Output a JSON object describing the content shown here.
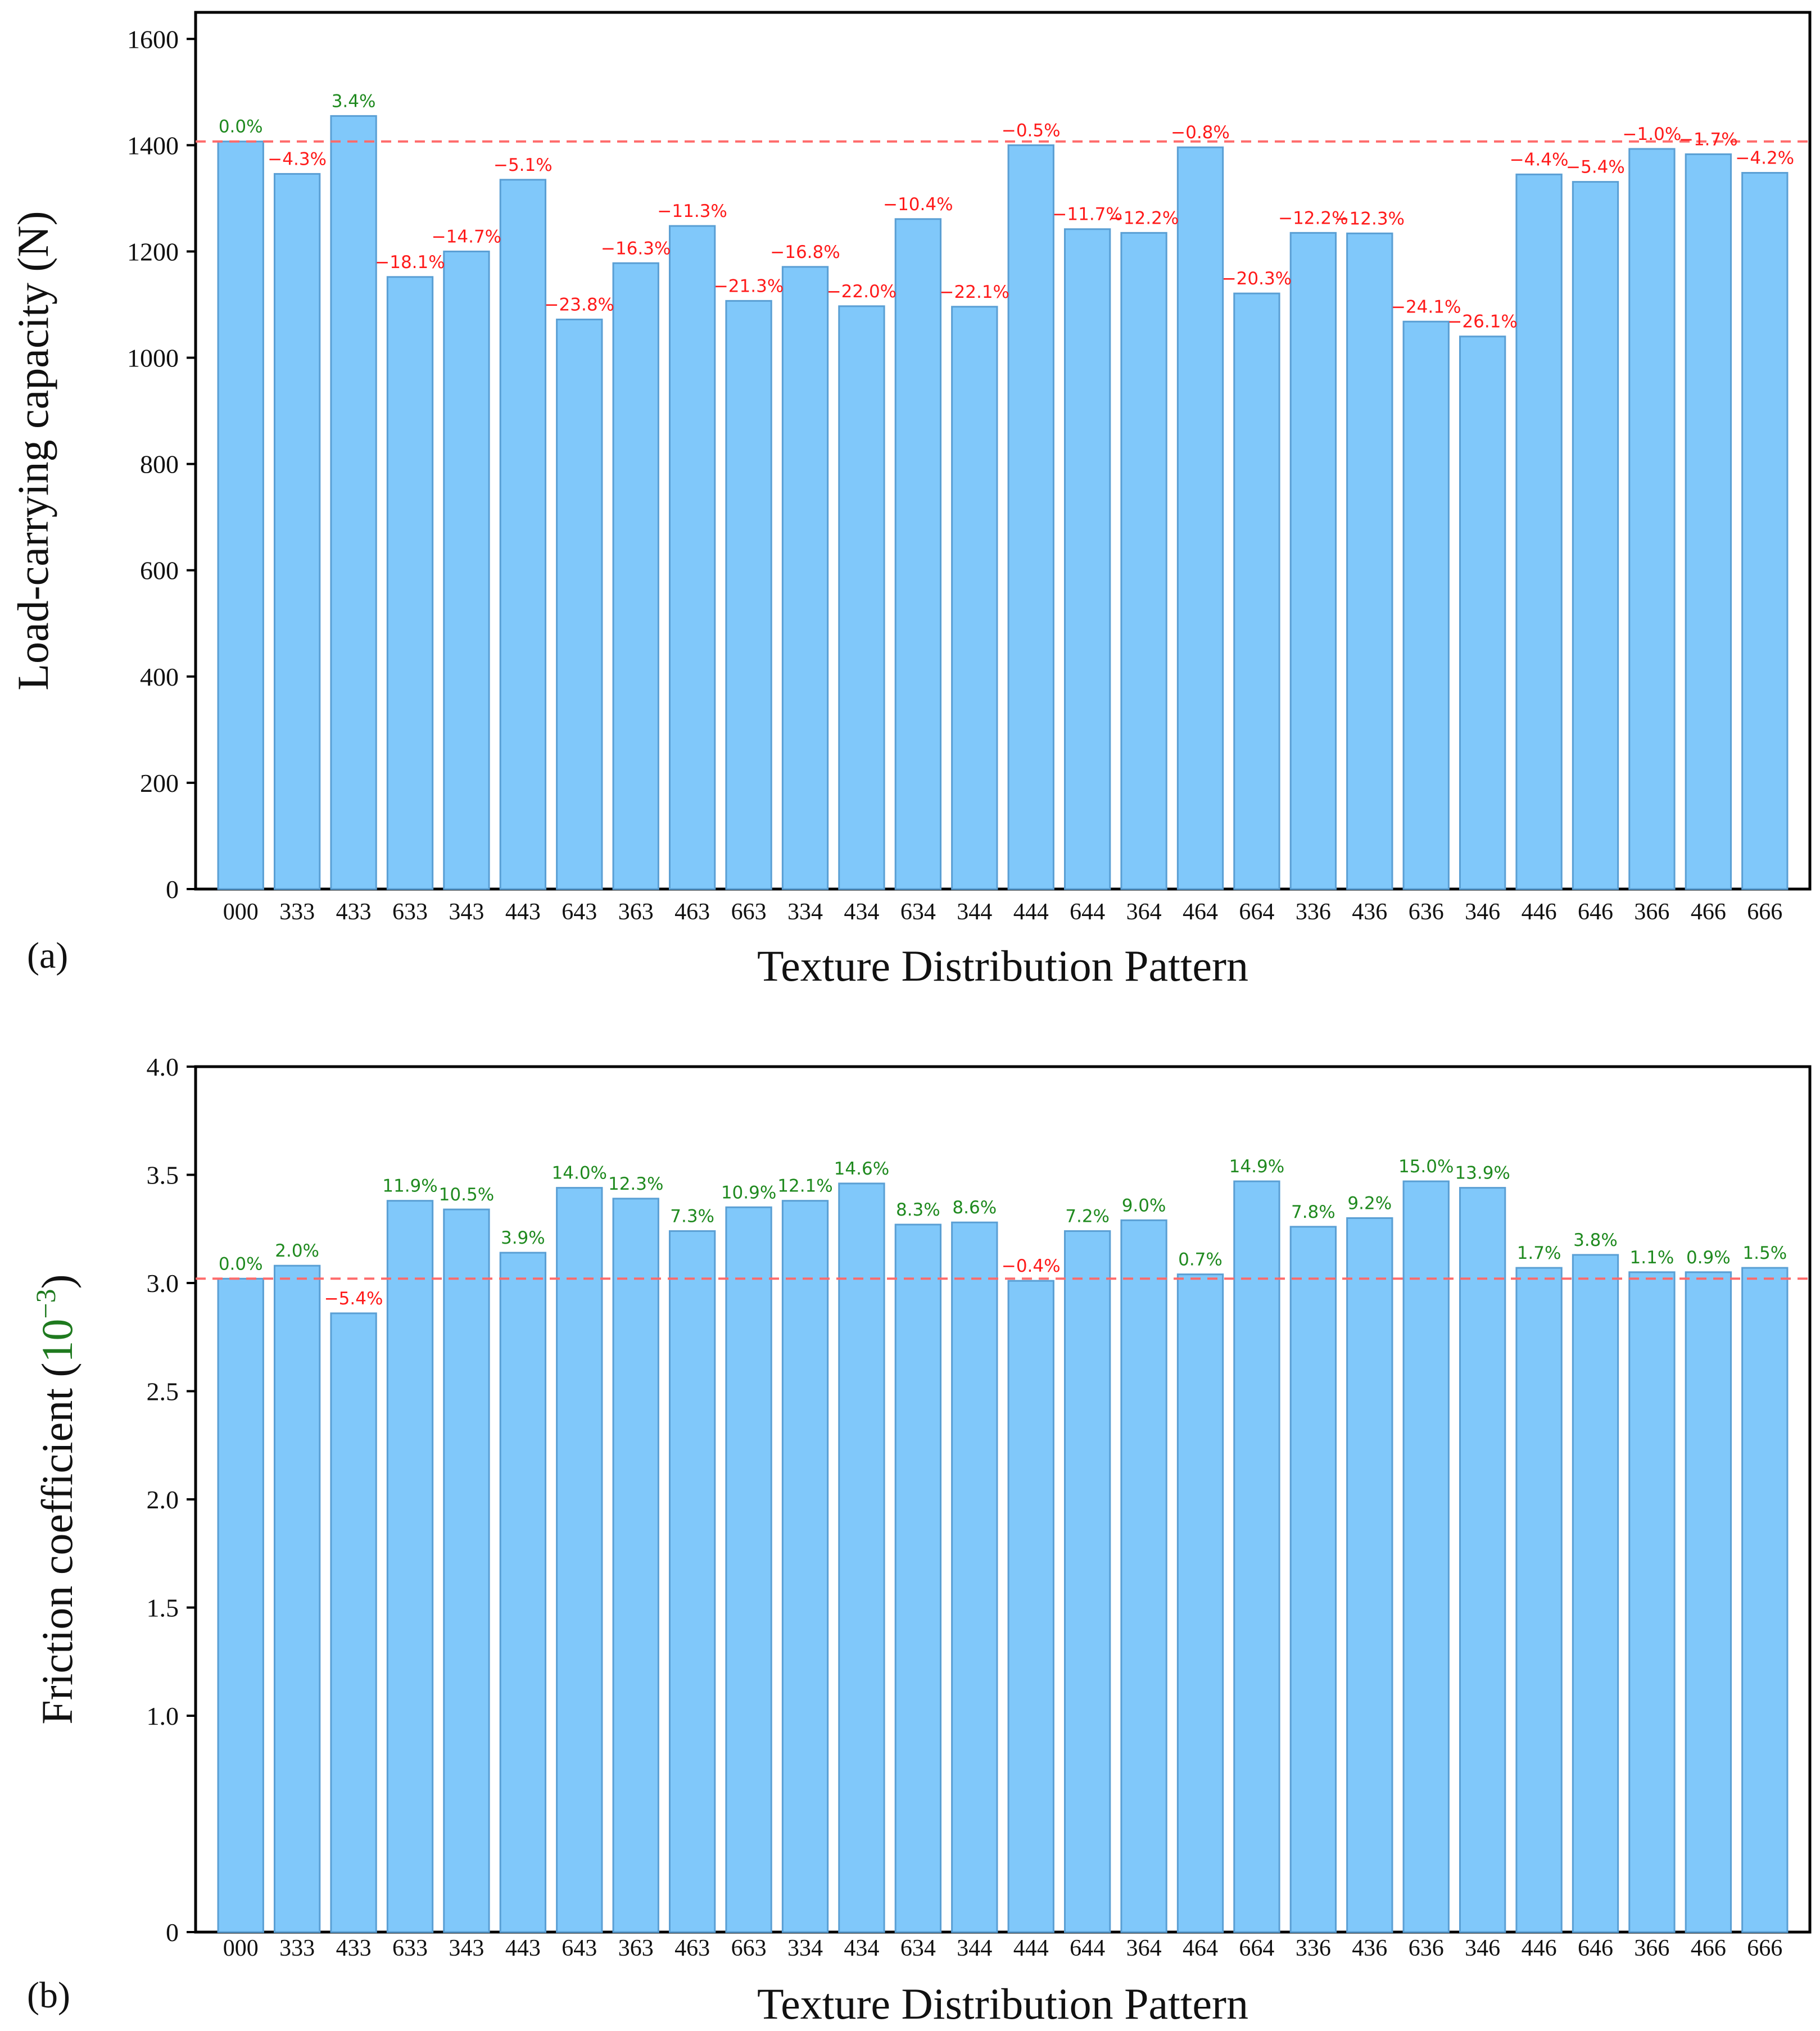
{
  "colors": {
    "bar_fill": "#80c8fa",
    "baseline": "#ff6b6b",
    "positive": "#1f8a1f",
    "negative": "#ff1a1a",
    "unit_accent": "#1f7a1f",
    "axis": "#000000"
  },
  "chart_data": [
    {
      "type": "bar",
      "panel_label": "(a)",
      "xlabel": "Texture Distribution Pattern",
      "ylabel": "Load-carrying capacity (N)",
      "ylim": [
        0,
        1650
      ],
      "yticks": [
        0,
        200,
        400,
        600,
        800,
        1000,
        1200,
        1400,
        1600
      ],
      "ytick_labels": [
        "0",
        "200",
        "400",
        "600",
        "800",
        "1000",
        "1200",
        "1400",
        "1600"
      ],
      "baseline_value": 1407,
      "baseline_style": "dashed",
      "categories": [
        "000",
        "333",
        "433",
        "633",
        "343",
        "443",
        "643",
        "363",
        "463",
        "663",
        "334",
        "434",
        "634",
        "344",
        "444",
        "644",
        "364",
        "464",
        "664",
        "336",
        "436",
        "636",
        "346",
        "446",
        "646",
        "366",
        "466",
        "666"
      ],
      "values": [
        1407,
        1346,
        1455,
        1152,
        1200,
        1335,
        1072,
        1178,
        1248,
        1107,
        1171,
        1097,
        1261,
        1096,
        1400,
        1242,
        1235,
        1396,
        1121,
        1235,
        1234,
        1068,
        1040,
        1345,
        1331,
        1393,
        1383,
        1348
      ],
      "data_labels": [
        "0.0%",
        "−4.3%",
        "3.4%",
        "−18.1%",
        "−14.7%",
        "−5.1%",
        "−23.8%",
        "−16.3%",
        "−11.3%",
        "−21.3%",
        "−16.8%",
        "−22.0%",
        "−10.4%",
        "−22.1%",
        "−0.5%",
        "−11.7%",
        "−12.2%",
        "−0.8%",
        "−20.3%",
        "−12.2%",
        "−12.3%",
        "−24.1%",
        "−26.1%",
        "−4.4%",
        "−5.4%",
        "−1.0%",
        "−1.7%",
        "−4.2%"
      ]
    },
    {
      "type": "bar",
      "panel_label": "(b)",
      "xlabel": "Texture Distribution Pattern",
      "ylabel": "Friction coefficient (",
      "ylabel_unit_base": "10",
      "ylabel_unit_exp": "−3",
      "ylabel_close": ")",
      "ylim": [
        0,
        4.0
      ],
      "yticks": [
        0,
        1.0,
        1.5,
        2.0,
        2.5,
        3.0,
        3.5,
        4.0
      ],
      "ytick_labels": [
        "0",
        "1.0",
        "1.5",
        "2.0",
        "2.5",
        "3.0",
        "3.5",
        "4.0"
      ],
      "baseline_value": 3.02,
      "baseline_style": "dashed",
      "categories": [
        "000",
        "333",
        "433",
        "633",
        "343",
        "443",
        "643",
        "363",
        "463",
        "663",
        "334",
        "434",
        "634",
        "344",
        "444",
        "644",
        "364",
        "464",
        "664",
        "336",
        "436",
        "636",
        "346",
        "446",
        "646",
        "366",
        "466",
        "666"
      ],
      "values": [
        3.02,
        3.08,
        2.86,
        3.38,
        3.34,
        3.14,
        3.44,
        3.39,
        3.24,
        3.35,
        3.38,
        3.46,
        3.27,
        3.28,
        3.01,
        3.24,
        3.29,
        3.04,
        3.47,
        3.26,
        3.3,
        3.47,
        3.44,
        3.07,
        3.13,
        3.05,
        3.05,
        3.07
      ],
      "data_labels": [
        "0.0%",
        "2.0%",
        "−5.4%",
        "11.9%",
        "10.5%",
        "3.9%",
        "14.0%",
        "12.3%",
        "7.3%",
        "10.9%",
        "12.1%",
        "14.6%",
        "8.3%",
        "8.6%",
        "−0.4%",
        "7.2%",
        "9.0%",
        "0.7%",
        "14.9%",
        "7.8%",
        "9.2%",
        "15.0%",
        "13.9%",
        "1.7%",
        "3.8%",
        "1.1%",
        "0.9%",
        "1.5%"
      ]
    }
  ]
}
